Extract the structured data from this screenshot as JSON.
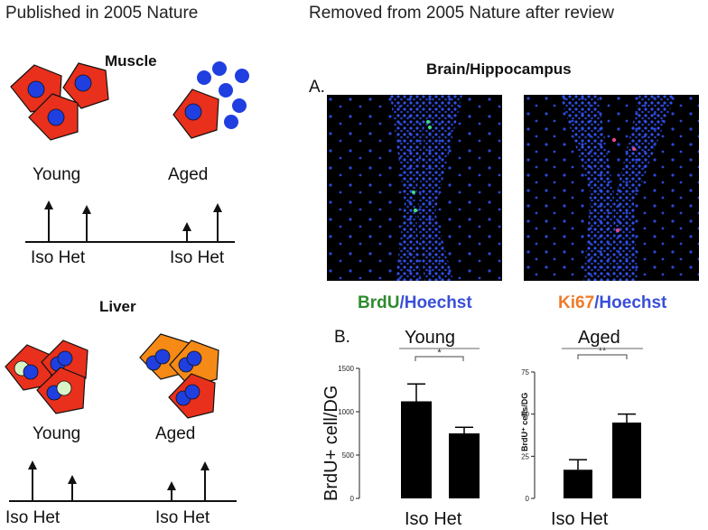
{
  "headers": {
    "left": "Published in 2005 Nature",
    "right": "Removed from 2005 Nature after review"
  },
  "muscle": {
    "title": "Muscle",
    "young_label": "Young",
    "aged_label": "Aged",
    "axis_young": "Iso Het",
    "axis_aged": "Iso Het"
  },
  "liver": {
    "title": "Liver",
    "young_label": "Young",
    "aged_label": "Aged",
    "axis_young": "Iso Het",
    "axis_aged": "Iso Het"
  },
  "brain": {
    "title": "Brain/Hippocampus",
    "panel_a": "A.",
    "panel_b": "B.",
    "stain_left_marker": "BrdU",
    "stain_left_counter": "/Hoechst",
    "stain_right_marker": "Ki67",
    "stain_right_counter": "/Hoechst"
  },
  "colors": {
    "cell_red": "#e8301c",
    "cell_orange": "#f58a16",
    "nucleus_blue": "#1f3fe0",
    "brdu_green": "#2e8b2e",
    "ki67_orange": "#f07a2a",
    "hoechst_blue": "#3a4fd8"
  },
  "chart_data": [
    {
      "type": "bar",
      "title": "Young",
      "ylabel": "BrdU+ cell/DG",
      "categories": [
        "Iso",
        "Het"
      ],
      "values": [
        1120,
        750
      ],
      "errors": [
        200,
        70
      ],
      "ylim": [
        0,
        1500
      ],
      "yticks": [
        "0",
        "500",
        "1000",
        "1500"
      ],
      "significance": "*",
      "xlabel": "Iso  Het"
    },
    {
      "type": "bar",
      "title": "Aged",
      "ylabel": "BrdU⁺ cells/DG",
      "categories": [
        "Iso",
        "Het"
      ],
      "values": [
        17,
        45
      ],
      "errors": [
        6,
        5
      ],
      "ylim": [
        0,
        75
      ],
      "yticks": [
        "0",
        "25",
        "50",
        "75"
      ],
      "significance": "**",
      "xlabel": "Iso Het"
    }
  ]
}
